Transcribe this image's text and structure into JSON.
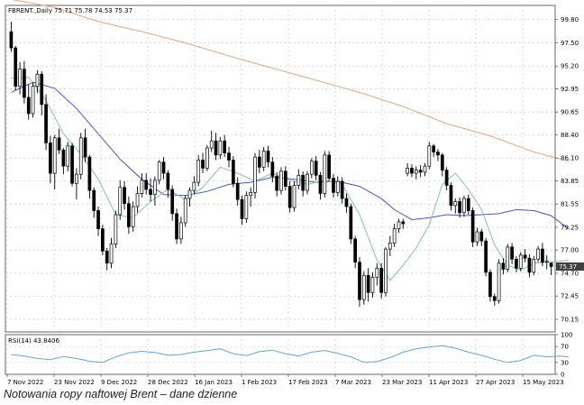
{
  "caption": "Notowania ropy naftowej Brent – dane dzienne",
  "chart_data": [
    {
      "type": "candlestick",
      "title": "FBRENT.,Daily  75.71 75.78 74.53 75.37",
      "last_price": "75.37",
      "ylim": [
        68.9,
        101.2
      ],
      "yticks": [
        "99.80",
        "97.50",
        "95.20",
        "92.95",
        "90.65",
        "88.40",
        "86.10",
        "83.85",
        "81.55",
        "79.25",
        "77.00",
        "74.70",
        "72.45",
        "70.15"
      ],
      "xticks": [
        "7 Nov 2022",
        "23 Nov 2022",
        "9 Dec 2022",
        "28 Dec 2022",
        "16 Jan 2023",
        "1 Feb 2023",
        "17 Feb 2023",
        "7 Mar 2023",
        "23 Mar 2023",
        "11 Apr 2023",
        "27 Apr 2023",
        "15 May 2023"
      ],
      "grid": true,
      "colors": {
        "up_candle": "#ffffff",
        "down_candle": "#000000",
        "wick": "#000000",
        "sma_fast": "#7cc6a4",
        "sma_mid": "#5050d0",
        "sma_slow": "#e8a57a",
        "grid": "#c8c8c8",
        "last_price_bg": "#404040"
      },
      "candles": [
        [
          98.6,
          99.6,
          96.6,
          97.0
        ],
        [
          97.0,
          97.2,
          92.8,
          93.2
        ],
        [
          93.2,
          95.6,
          92.4,
          94.9
        ],
        [
          94.9,
          95.7,
          91.5,
          92.1
        ],
        [
          92.1,
          93.4,
          89.9,
          90.5
        ],
        [
          90.5,
          93.6,
          90.1,
          93.2
        ],
        [
          93.2,
          94.8,
          92.5,
          94.4
        ],
        [
          94.4,
          94.7,
          90.3,
          91.4
        ],
        [
          91.4,
          92.4,
          86.9,
          87.6
        ],
        [
          87.6,
          88.3,
          83.6,
          84.6
        ],
        [
          84.6,
          88.4,
          83.0,
          88.1
        ],
        [
          88.1,
          89.0,
          86.5,
          86.9
        ],
        [
          86.9,
          87.1,
          84.5,
          85.3
        ],
        [
          85.3,
          87.7,
          84.8,
          87.3
        ],
        [
          87.3,
          87.6,
          83.3,
          83.6
        ],
        [
          83.6,
          85.1,
          82.0,
          84.5
        ],
        [
          84.5,
          88.6,
          84.0,
          88.1
        ],
        [
          88.1,
          89.0,
          85.7,
          86.2
        ],
        [
          86.2,
          86.4,
          82.1,
          82.9
        ],
        [
          82.9,
          83.2,
          80.2,
          80.9
        ],
        [
          80.9,
          81.3,
          78.4,
          79.1
        ],
        [
          79.1,
          79.5,
          76.5,
          76.9
        ],
        [
          76.9,
          77.2,
          75.0,
          75.7
        ],
        [
          75.7,
          78.2,
          75.2,
          77.6
        ],
        [
          77.6,
          80.9,
          77.2,
          80.5
        ],
        [
          80.5,
          83.9,
          80.0,
          83.2
        ],
        [
          83.2,
          83.8,
          81.0,
          81.6
        ],
        [
          81.6,
          82.3,
          78.6,
          79.3
        ],
        [
          79.3,
          81.8,
          78.8,
          81.3
        ],
        [
          81.3,
          83.3,
          80.7,
          82.6
        ],
        [
          82.6,
          84.6,
          82.2,
          83.9
        ],
        [
          83.9,
          84.6,
          82.5,
          83.0
        ],
        [
          83.0,
          84.1,
          81.8,
          82.5
        ],
        [
          82.5,
          84.3,
          81.4,
          83.9
        ],
        [
          83.9,
          85.9,
          83.5,
          85.7
        ],
        [
          85.7,
          86.2,
          84.0,
          84.6
        ],
        [
          84.6,
          84.9,
          82.2,
          83.0
        ],
        [
          83.0,
          83.4,
          79.9,
          80.6
        ],
        [
          80.6,
          81.1,
          77.6,
          78.1
        ],
        [
          78.1,
          80.3,
          77.6,
          79.7
        ],
        [
          79.7,
          82.4,
          79.3,
          82.1
        ],
        [
          82.1,
          83.2,
          81.3,
          82.9
        ],
        [
          82.9,
          84.3,
          82.5,
          83.7
        ],
        [
          83.7,
          86.4,
          83.3,
          85.9
        ],
        [
          85.9,
          86.6,
          84.6,
          85.1
        ],
        [
          85.1,
          87.4,
          84.8,
          87.1
        ],
        [
          87.1,
          88.8,
          86.7,
          87.8
        ],
        [
          87.8,
          88.6,
          85.9,
          86.4
        ],
        [
          86.4,
          88.2,
          86.0,
          87.8
        ],
        [
          87.8,
          88.4,
          86.2,
          86.6
        ],
        [
          86.6,
          87.2,
          85.2,
          85.9
        ],
        [
          85.9,
          86.3,
          83.2,
          83.6
        ],
        [
          83.6,
          84.2,
          81.4,
          82.0
        ],
        [
          82.0,
          82.4,
          79.5,
          80.1
        ],
        [
          80.1,
          82.8,
          79.7,
          82.4
        ],
        [
          82.4,
          83.2,
          81.3,
          82.7
        ],
        [
          82.7,
          86.6,
          82.1,
          86.2
        ],
        [
          86.2,
          86.9,
          84.6,
          85.2
        ],
        [
          85.2,
          87.2,
          84.8,
          86.8
        ],
        [
          86.8,
          87.3,
          85.2,
          85.7
        ],
        [
          85.7,
          86.2,
          83.7,
          84.3
        ],
        [
          84.3,
          84.7,
          82.3,
          82.9
        ],
        [
          82.9,
          85.2,
          82.5,
          84.8
        ],
        [
          84.8,
          85.3,
          82.9,
          83.3
        ],
        [
          83.3,
          83.8,
          80.7,
          81.2
        ],
        [
          81.2,
          83.8,
          80.8,
          83.4
        ],
        [
          83.4,
          85.0,
          83.0,
          84.4
        ],
        [
          84.4,
          84.8,
          82.3,
          82.9
        ],
        [
          82.9,
          84.8,
          82.5,
          84.5
        ],
        [
          84.5,
          86.1,
          84.1,
          85.8
        ],
        [
          85.8,
          86.3,
          83.9,
          84.4
        ],
        [
          84.4,
          84.7,
          82.0,
          82.6
        ],
        [
          82.6,
          86.8,
          82.2,
          86.4
        ],
        [
          86.4,
          86.8,
          83.8,
          84.1
        ],
        [
          84.1,
          84.5,
          82.2,
          82.7
        ],
        [
          82.7,
          84.3,
          82.3,
          83.8
        ],
        [
          83.8,
          84.2,
          81.6,
          82.1
        ],
        [
          82.1,
          82.6,
          80.7,
          81.3
        ],
        [
          81.3,
          81.6,
          77.6,
          78.1
        ],
        [
          78.1,
          78.4,
          75.2,
          75.8
        ],
        [
          75.8,
          76.3,
          71.4,
          72.1
        ],
        [
          72.1,
          74.9,
          71.6,
          74.5
        ],
        [
          74.5,
          75.2,
          71.9,
          72.8
        ],
        [
          72.8,
          74.8,
          72.3,
          74.3
        ],
        [
          74.3,
          75.7,
          73.5,
          75.2
        ],
        [
          75.2,
          75.7,
          72.2,
          72.8
        ],
        [
          72.8,
          77.3,
          72.4,
          77.1
        ],
        [
          77.1,
          78.4,
          76.4,
          77.7
        ],
        [
          77.7,
          79.6,
          77.3,
          79.1
        ],
        [
          79.1,
          80.1,
          78.7,
          79.8
        ],
        [
          79.8,
          80.1,
          79.1,
          79.6
        ],
        [
          84.6,
          85.6,
          84.3,
          85.1
        ],
        [
          85.1,
          85.5,
          84.2,
          84.6
        ],
        [
          84.6,
          85.3,
          84.0,
          84.9
        ],
        [
          84.9,
          85.4,
          84.2,
          84.7
        ],
        [
          84.7,
          85.6,
          84.3,
          85.3
        ],
        [
          85.3,
          87.7,
          85.0,
          87.3
        ],
        [
          87.3,
          87.5,
          86.2,
          86.7
        ],
        [
          86.7,
          87.0,
          85.8,
          86.4
        ],
        [
          86.4,
          86.6,
          84.3,
          84.9
        ],
        [
          84.9,
          85.2,
          82.9,
          83.4
        ],
        [
          83.4,
          83.7,
          80.9,
          81.4
        ],
        [
          81.4,
          82.1,
          80.6,
          81.8
        ],
        [
          81.8,
          82.2,
          80.2,
          80.7
        ],
        [
          80.7,
          82.4,
          80.3,
          82.1
        ],
        [
          82.1,
          82.5,
          80.5,
          80.9
        ],
        [
          80.9,
          81.2,
          77.3,
          77.8
        ],
        [
          77.8,
          79.2,
          77.4,
          78.8
        ],
        [
          78.8,
          79.1,
          77.4,
          77.9
        ],
        [
          77.9,
          78.2,
          74.4,
          74.8
        ],
        [
          74.8,
          75.1,
          71.9,
          72.4
        ],
        [
          72.4,
          72.7,
          71.5,
          72.0
        ],
        [
          72.0,
          76.1,
          71.7,
          75.7
        ],
        [
          75.7,
          76.2,
          74.6,
          75.1
        ],
        [
          75.1,
          77.6,
          74.8,
          77.3
        ],
        [
          77.3,
          77.7,
          75.6,
          76.1
        ],
        [
          76.1,
          76.4,
          74.8,
          75.2
        ],
        [
          75.2,
          76.8,
          74.9,
          76.5
        ],
        [
          76.5,
          77.1,
          75.8,
          76.2
        ],
        [
          76.2,
          76.6,
          74.3,
          74.8
        ],
        [
          74.8,
          76.4,
          74.5,
          76.1
        ],
        [
          76.1,
          77.4,
          75.8,
          77.1
        ],
        [
          77.1,
          77.7,
          75.4,
          75.8
        ],
        [
          75.8,
          76.5,
          75.1,
          75.9
        ],
        [
          75.71,
          75.78,
          74.53,
          75.37
        ]
      ],
      "sma_fast": [
        [
          0,
          94.0
        ],
        [
          4,
          94.1
        ],
        [
          8,
          91.8
        ],
        [
          12,
          88.5
        ],
        [
          16,
          86.5
        ],
        [
          20,
          84.0
        ],
        [
          24,
          80.5
        ],
        [
          28,
          80.2
        ],
        [
          32,
          81.8
        ],
        [
          36,
          83.0
        ],
        [
          40,
          82.0
        ],
        [
          44,
          83.2
        ],
        [
          48,
          85.2
        ],
        [
          52,
          84.6
        ],
        [
          56,
          83.8
        ],
        [
          60,
          84.6
        ],
        [
          64,
          83.9
        ],
        [
          68,
          83.5
        ],
        [
          72,
          83.9
        ],
        [
          76,
          83.5
        ],
        [
          80,
          80.5
        ],
        [
          84,
          76.0
        ],
        [
          87,
          74.0
        ],
        [
          90,
          75.5
        ],
        [
          93,
          77.2
        ],
        [
          96,
          79.5
        ],
        [
          99,
          83.5
        ],
        [
          102,
          84.6
        ],
        [
          105,
          83.0
        ],
        [
          108,
          81.0
        ],
        [
          111,
          77.5
        ],
        [
          114,
          75.5
        ],
        [
          117,
          75.0
        ],
        [
          120,
          75.7
        ],
        [
          124,
          75.8
        ],
        [
          128,
          76.0
        ]
      ],
      "sma_mid": [
        [
          0,
          92.6
        ],
        [
          5,
          93.6
        ],
        [
          10,
          93.0
        ],
        [
          15,
          91.0
        ],
        [
          20,
          88.5
        ],
        [
          25,
          86.0
        ],
        [
          30,
          84.0
        ],
        [
          35,
          82.5
        ],
        [
          40,
          82.4
        ],
        [
          45,
          82.8
        ],
        [
          50,
          83.5
        ],
        [
          55,
          83.7
        ],
        [
          60,
          84.2
        ],
        [
          65,
          84.0
        ],
        [
          70,
          83.7
        ],
        [
          75,
          83.8
        ],
        [
          80,
          83.3
        ],
        [
          85,
          82.1
        ],
        [
          88,
          81.0
        ],
        [
          92,
          80.0
        ],
        [
          96,
          80.2
        ],
        [
          100,
          80.5
        ],
        [
          104,
          80.4
        ],
        [
          108,
          80.5
        ],
        [
          112,
          80.6
        ],
        [
          116,
          81.0
        ],
        [
          120,
          80.9
        ],
        [
          124,
          80.4
        ],
        [
          128,
          79.1
        ]
      ],
      "sma_slow": [
        [
          0,
          101.8
        ],
        [
          10,
          101.0
        ],
        [
          20,
          99.6
        ],
        [
          30,
          98.6
        ],
        [
          40,
          97.5
        ],
        [
          50,
          96.2
        ],
        [
          60,
          95.0
        ],
        [
          70,
          93.8
        ],
        [
          80,
          92.6
        ],
        [
          90,
          91.2
        ],
        [
          100,
          89.5
        ],
        [
          110,
          88.3
        ],
        [
          120,
          86.7
        ],
        [
          128,
          85.8
        ]
      ]
    },
    {
      "type": "line",
      "title": "RSI(14) 43.8406",
      "ylim": [
        0,
        100
      ],
      "yticks": [
        "100",
        "70",
        "30",
        "0"
      ],
      "colors": {
        "line": "#5aa6e6"
      },
      "values": [
        [
          0,
          50
        ],
        [
          3,
          46
        ],
        [
          6,
          40
        ],
        [
          9,
          37
        ],
        [
          12,
          45
        ],
        [
          15,
          40
        ],
        [
          18,
          33
        ],
        [
          21,
          30
        ],
        [
          24,
          44
        ],
        [
          27,
          54
        ],
        [
          30,
          58
        ],
        [
          33,
          55
        ],
        [
          36,
          48
        ],
        [
          39,
          50
        ],
        [
          42,
          56
        ],
        [
          45,
          60
        ],
        [
          48,
          64
        ],
        [
          51,
          52
        ],
        [
          54,
          47
        ],
        [
          57,
          57
        ],
        [
          60,
          61
        ],
        [
          63,
          52
        ],
        [
          66,
          46
        ],
        [
          69,
          56
        ],
        [
          72,
          60
        ],
        [
          75,
          53
        ],
        [
          78,
          44
        ],
        [
          81,
          30
        ],
        [
          84,
          32
        ],
        [
          87,
          42
        ],
        [
          90,
          56
        ],
        [
          93,
          64
        ],
        [
          96,
          69
        ],
        [
          99,
          72
        ],
        [
          102,
          66
        ],
        [
          105,
          56
        ],
        [
          108,
          48
        ],
        [
          111,
          38
        ],
        [
          114,
          30
        ],
        [
          117,
          35
        ],
        [
          120,
          48
        ],
        [
          123,
          44
        ],
        [
          126,
          46
        ],
        [
          128,
          44
        ]
      ]
    }
  ]
}
